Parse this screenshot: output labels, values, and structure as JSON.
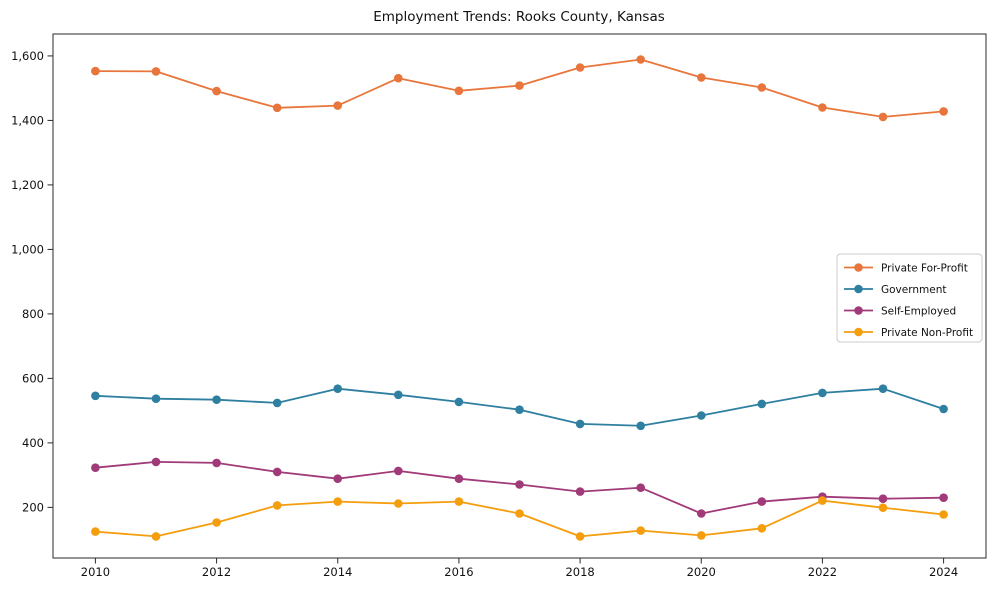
{
  "figure": {
    "background": "#ffffff"
  },
  "chart_data": {
    "type": "line",
    "title": "Employment Trends: Rooks County, Kansas",
    "x": [
      2010,
      2011,
      2012,
      2013,
      2014,
      2015,
      2016,
      2017,
      2018,
      2019,
      2020,
      2021,
      2022,
      2023,
      2024
    ],
    "series": [
      {
        "name": "Private For-Profit",
        "color": "#e8763c",
        "values": [
          1553,
          1552,
          1491,
          1439,
          1446,
          1531,
          1492,
          1508,
          1564,
          1589,
          1533,
          1502,
          1440,
          1411,
          1428
        ]
      },
      {
        "name": "Government",
        "color": "#2e7fa0",
        "values": [
          546,
          537,
          534,
          524,
          568,
          549,
          527,
          503,
          459,
          453,
          485,
          521,
          555,
          568,
          505
        ]
      },
      {
        "name": "Self-Employed",
        "color": "#a03a78",
        "values": [
          323,
          341,
          338,
          310,
          289,
          313,
          289,
          271,
          249,
          261,
          181,
          218,
          233,
          227,
          230
        ]
      },
      {
        "name": "Private Non-Profit",
        "color": "#f49d0d",
        "values": [
          125,
          110,
          153,
          206,
          218,
          212,
          218,
          181,
          110,
          128,
          113,
          135,
          221,
          199,
          178
        ]
      }
    ],
    "xlabel": "",
    "ylabel": "",
    "xlim": [
      2009.3,
      2024.7
    ],
    "ylim": [
      43,
      1668
    ],
    "xticks": {
      "values": [
        2010,
        2012,
        2014,
        2016,
        2018,
        2020,
        2022,
        2024
      ],
      "labels": [
        "2010",
        "2012",
        "2014",
        "2016",
        "2018",
        "2020",
        "2022",
        "2024"
      ]
    },
    "yticks": {
      "values": [
        200,
        400,
        600,
        800,
        1000,
        1200,
        1400,
        1600
      ],
      "labels": [
        "200",
        "400",
        "600",
        "800",
        "1,000",
        "1,200",
        "1,400",
        "1,600"
      ]
    },
    "grid": false,
    "legend": {
      "position": "center-right",
      "border_color": "#cccccc",
      "background": "#ffffff",
      "entries": [
        "Private For-Profit",
        "Government",
        "Self-Employed",
        "Private Non-Profit"
      ]
    }
  },
  "style": {
    "axis_color": "#2a2a2a",
    "text_color": "#111111"
  }
}
